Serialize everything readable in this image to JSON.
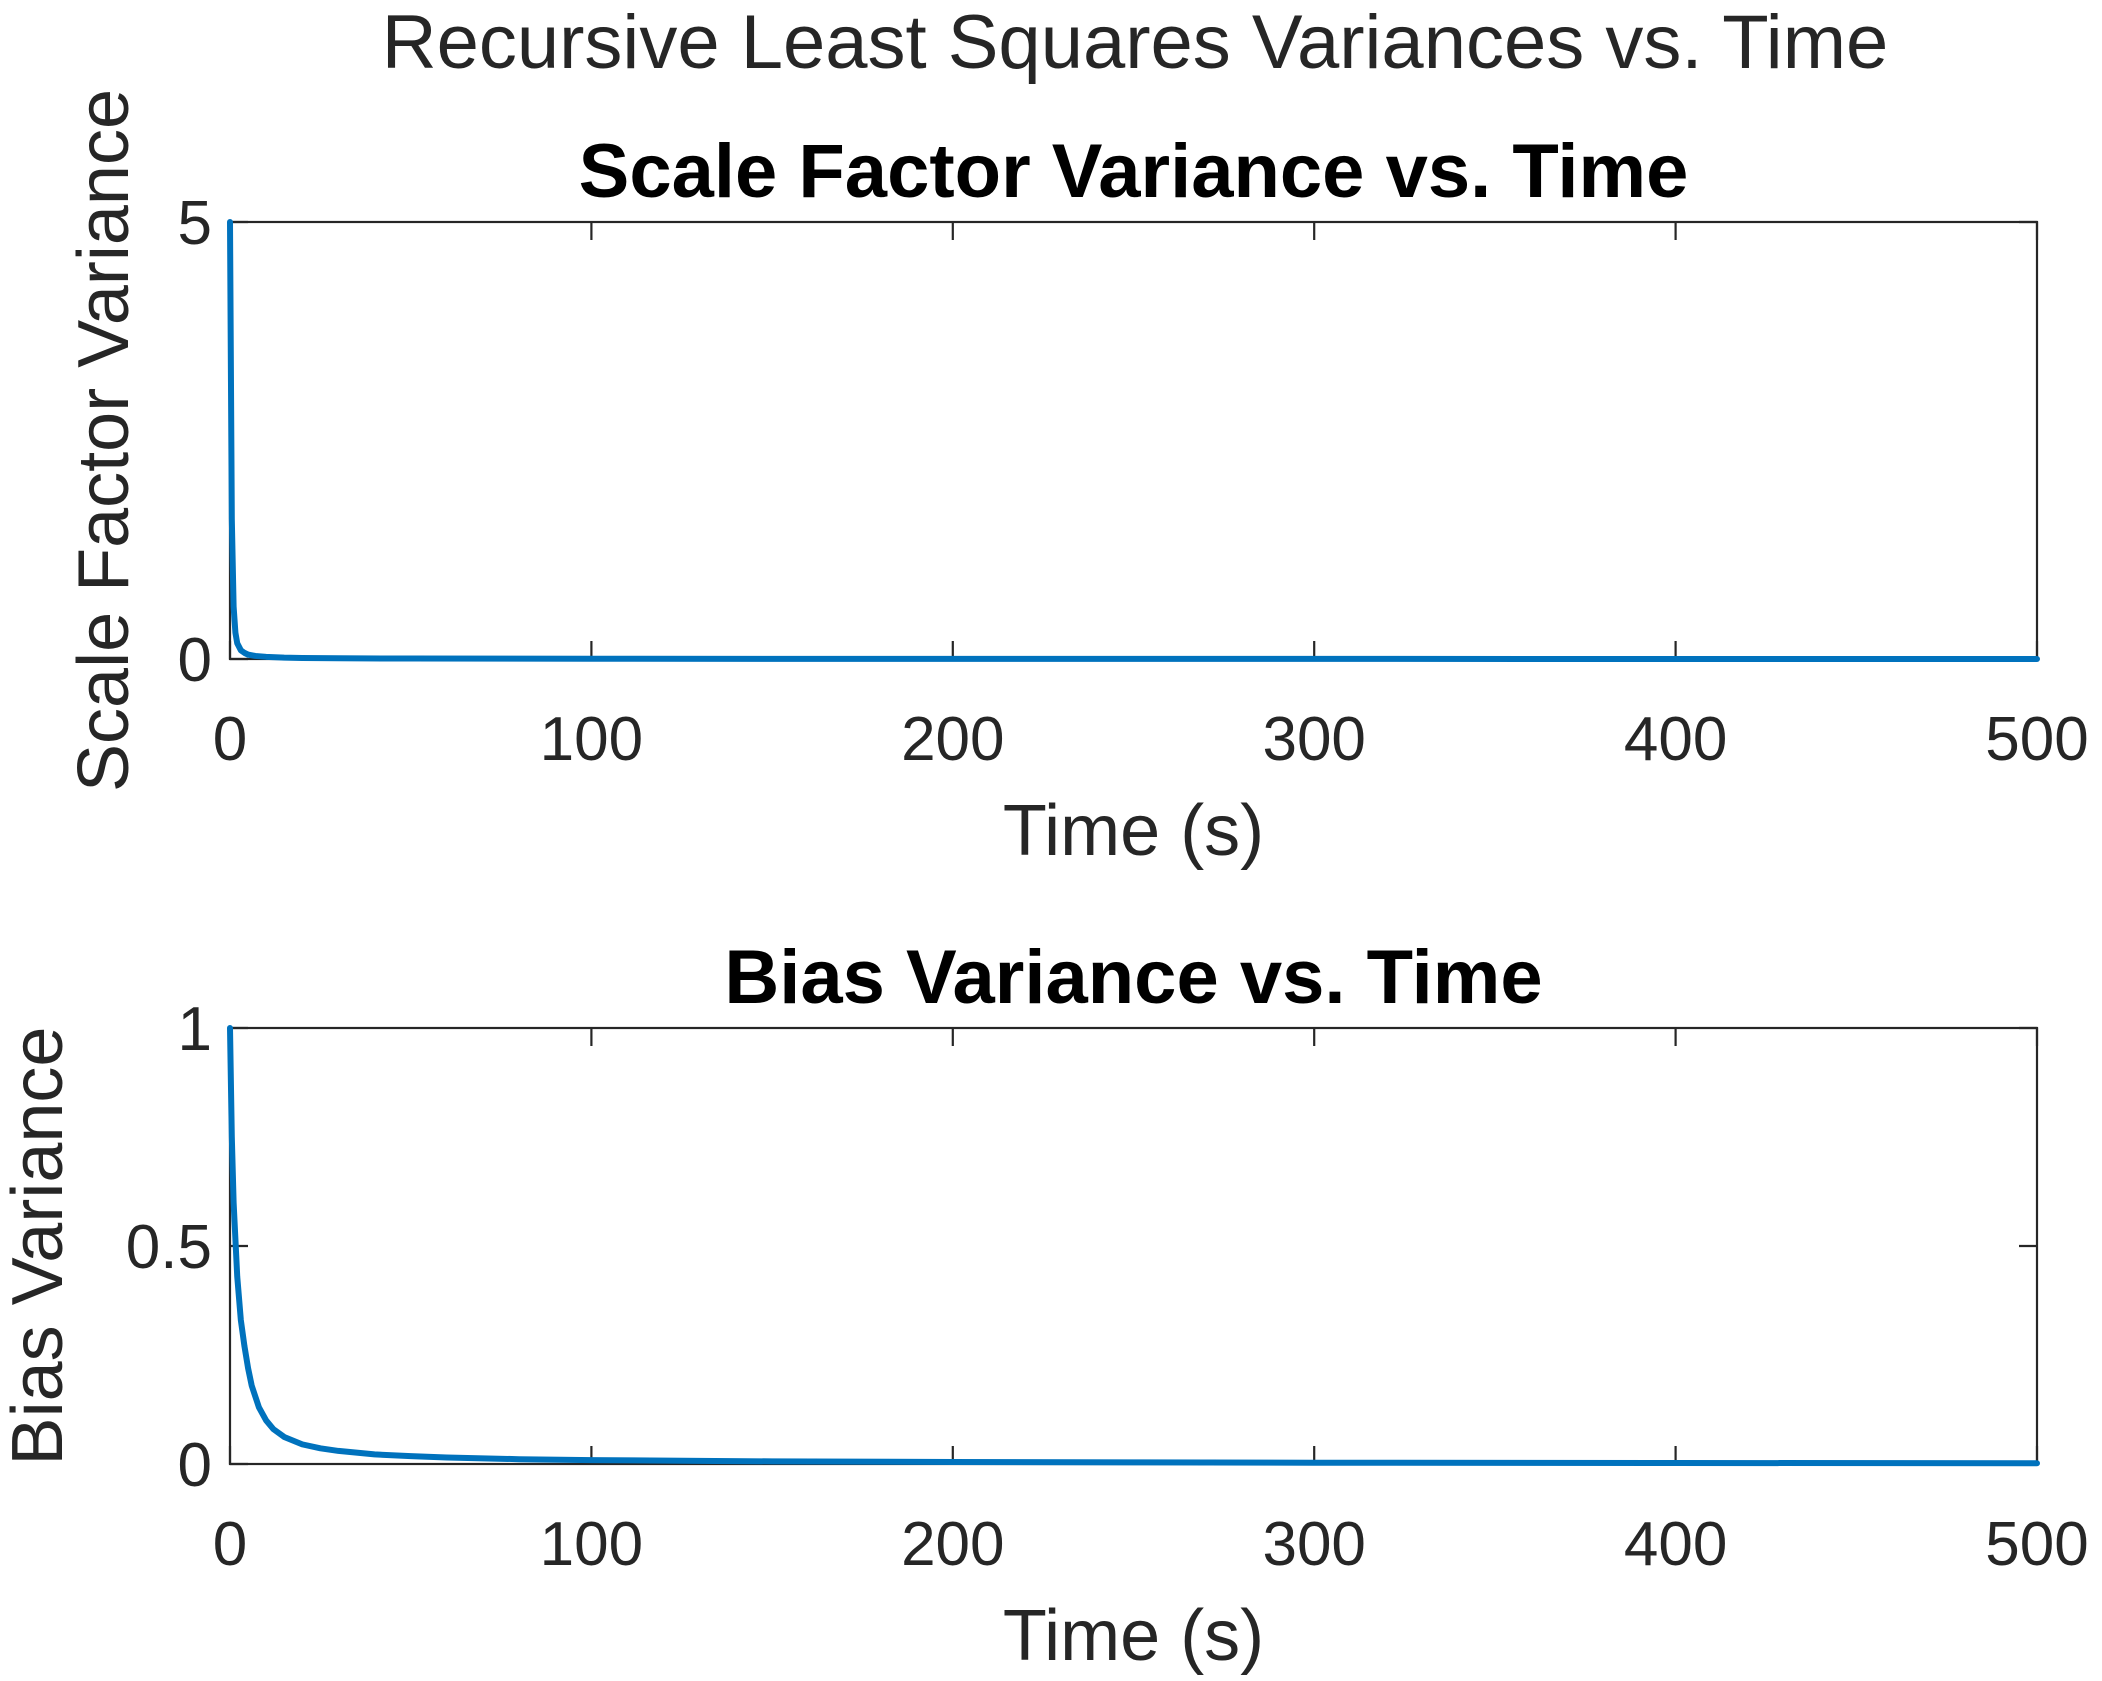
{
  "figure": {
    "suptitle": "Recursive Least Squares Variances vs. Time"
  },
  "chart_data": [
    {
      "type": "line",
      "title": "Scale Factor Variance vs. Time",
      "xlabel": "Time (s)",
      "ylabel": "Scale Factor Variance",
      "xlim": [
        0,
        500
      ],
      "ylim": [
        0,
        5
      ],
      "xticks": [
        0,
        100,
        200,
        300,
        400,
        500
      ],
      "xtick_labels": [
        "0",
        "100",
        "200",
        "300",
        "400",
        "500"
      ],
      "yticks": [
        0,
        5
      ],
      "ytick_labels": [
        "0",
        "5"
      ],
      "grid": false,
      "color": "#0072BD",
      "series": [
        {
          "x": [
            0,
            0.5,
            1,
            1.5,
            2,
            3,
            4,
            5,
            7,
            10,
            15,
            20,
            30,
            50,
            100,
            200,
            300,
            400,
            500
          ],
          "y": [
            5,
            1.6,
            0.6,
            0.3,
            0.18,
            0.1,
            0.07,
            0.05,
            0.035,
            0.025,
            0.016,
            0.012,
            0.008,
            0.005,
            0.0025,
            0.0012,
            0.0008,
            0.0006,
            0.0005
          ]
        }
      ]
    },
    {
      "type": "line",
      "title": "Bias Variance vs. Time",
      "xlabel": "Time (s)",
      "ylabel": "Bias Variance",
      "xlim": [
        0,
        500
      ],
      "ylim": [
        0,
        1
      ],
      "xticks": [
        0,
        100,
        200,
        300,
        400,
        500
      ],
      "xtick_labels": [
        "0",
        "100",
        "200",
        "300",
        "400",
        "500"
      ],
      "yticks": [
        0,
        0.5,
        1
      ],
      "ytick_labels": [
        "0",
        "0.5",
        "1"
      ],
      "grid": false,
      "color": "#0072BD",
      "series": [
        {
          "x": [
            0,
            0.5,
            1,
            2,
            3,
            4,
            5,
            6,
            8,
            10,
            12,
            15,
            20,
            25,
            30,
            40,
            50,
            60,
            80,
            100,
            150,
            200,
            250,
            300,
            400,
            500
          ],
          "y": [
            1,
            0.75,
            0.6,
            0.43,
            0.33,
            0.27,
            0.22,
            0.18,
            0.13,
            0.1,
            0.08,
            0.062,
            0.045,
            0.036,
            0.03,
            0.022,
            0.018,
            0.015,
            0.011,
            0.009,
            0.006,
            0.0045,
            0.0037,
            0.003,
            0.0023,
            0.0018
          ]
        }
      ]
    }
  ]
}
